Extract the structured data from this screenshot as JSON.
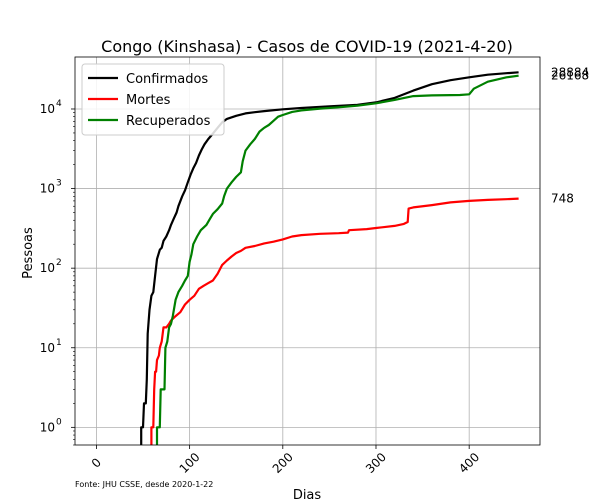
{
  "chart_data": {
    "type": "line",
    "title": "Congo (Kinshasa) - Casos de COVID-19 (2021-4-20)",
    "xlabel": "Dias",
    "ylabel": "Pessoas",
    "yscale": "log",
    "xlim": [
      -23,
      476
    ],
    "ylim": [
      0.6,
      45000
    ],
    "xticks": [
      0,
      100,
      200,
      300,
      400
    ],
    "xtick_labels": [
      "0",
      "100",
      "200",
      "300",
      "400"
    ],
    "yticks": [
      1,
      10,
      100,
      1000,
      10000
    ],
    "ytick_labels": [
      "10",
      "10",
      "10",
      "10",
      "10"
    ],
    "ytick_exponents": [
      "0",
      "1",
      "2",
      "3",
      "4"
    ],
    "grid": true,
    "legend_position": "upper-left",
    "footnote": "Fonte: JHU CSSE, desde 2020-1-22",
    "series": [
      {
        "name": "Confirmados",
        "color": "#000000",
        "end_label": "28884",
        "points": [
          [
            48,
            0.6
          ],
          [
            48,
            1
          ],
          [
            50,
            1
          ],
          [
            51,
            2
          ],
          [
            53,
            2
          ],
          [
            54,
            4
          ],
          [
            55,
            15
          ],
          [
            57,
            30
          ],
          [
            59,
            45
          ],
          [
            61,
            50
          ],
          [
            63,
            80
          ],
          [
            65,
            130
          ],
          [
            68,
            170
          ],
          [
            70,
            180
          ],
          [
            72,
            220
          ],
          [
            75,
            250
          ],
          [
            78,
            300
          ],
          [
            80,
            350
          ],
          [
            83,
            420
          ],
          [
            86,
            500
          ],
          [
            88,
            600
          ],
          [
            92,
            800
          ],
          [
            95,
            950
          ],
          [
            98,
            1200
          ],
          [
            101,
            1500
          ],
          [
            104,
            1800
          ],
          [
            107,
            2100
          ],
          [
            110,
            2600
          ],
          [
            113,
            3100
          ],
          [
            116,
            3600
          ],
          [
            120,
            4200
          ],
          [
            125,
            4900
          ],
          [
            130,
            5800
          ],
          [
            135,
            6800
          ],
          [
            140,
            7500
          ],
          [
            150,
            8200
          ],
          [
            160,
            8800
          ],
          [
            170,
            9100
          ],
          [
            180,
            9400
          ],
          [
            200,
            9900
          ],
          [
            220,
            10300
          ],
          [
            250,
            10800
          ],
          [
            280,
            11300
          ],
          [
            300,
            12100
          ],
          [
            320,
            13800
          ],
          [
            340,
            17000
          ],
          [
            360,
            20500
          ],
          [
            380,
            23000
          ],
          [
            400,
            25000
          ],
          [
            420,
            27000
          ],
          [
            440,
            28200
          ],
          [
            453,
            28884
          ]
        ]
      },
      {
        "name": "Mortes",
        "color": "#ff0000",
        "end_label": "748",
        "points": [
          [
            59,
            0.6
          ],
          [
            59,
            1
          ],
          [
            61,
            1
          ],
          [
            62,
            3
          ],
          [
            63,
            5
          ],
          [
            64,
            5
          ],
          [
            65,
            7
          ],
          [
            67,
            8
          ],
          [
            68,
            10
          ],
          [
            70,
            12
          ],
          [
            72,
            18
          ],
          [
            75,
            18
          ],
          [
            78,
            20
          ],
          [
            80,
            22
          ],
          [
            85,
            25
          ],
          [
            90,
            28
          ],
          [
            95,
            35
          ],
          [
            100,
            40
          ],
          [
            105,
            45
          ],
          [
            110,
            55
          ],
          [
            115,
            60
          ],
          [
            120,
            65
          ],
          [
            125,
            70
          ],
          [
            130,
            85
          ],
          [
            135,
            110
          ],
          [
            140,
            125
          ],
          [
            145,
            140
          ],
          [
            150,
            155
          ],
          [
            155,
            165
          ],
          [
            160,
            180
          ],
          [
            170,
            190
          ],
          [
            180,
            205
          ],
          [
            190,
            215
          ],
          [
            200,
            230
          ],
          [
            210,
            250
          ],
          [
            220,
            260
          ],
          [
            240,
            270
          ],
          [
            260,
            275
          ],
          [
            270,
            280
          ],
          [
            271,
            300
          ],
          [
            290,
            310
          ],
          [
            300,
            320
          ],
          [
            320,
            340
          ],
          [
            330,
            360
          ],
          [
            334,
            380
          ],
          [
            335,
            560
          ],
          [
            340,
            580
          ],
          [
            360,
            620
          ],
          [
            380,
            670
          ],
          [
            400,
            700
          ],
          [
            420,
            720
          ],
          [
            440,
            735
          ],
          [
            453,
            748
          ]
        ]
      },
      {
        "name": "Recuperados",
        "color": "#008000",
        "end_label": "26168",
        "points": [
          [
            65,
            0.6
          ],
          [
            65,
            1
          ],
          [
            67,
            1
          ],
          [
            68,
            1
          ],
          [
            69,
            3
          ],
          [
            72,
            3
          ],
          [
            73,
            3
          ],
          [
            74,
            10
          ],
          [
            76,
            12
          ],
          [
            78,
            18
          ],
          [
            80,
            20
          ],
          [
            82,
            25
          ],
          [
            85,
            40
          ],
          [
            88,
            50
          ],
          [
            92,
            60
          ],
          [
            95,
            70
          ],
          [
            98,
            80
          ],
          [
            100,
            120
          ],
          [
            102,
            150
          ],
          [
            104,
            200
          ],
          [
            108,
            250
          ],
          [
            112,
            300
          ],
          [
            118,
            350
          ],
          [
            122,
            420
          ],
          [
            125,
            480
          ],
          [
            130,
            550
          ],
          [
            135,
            650
          ],
          [
            137,
            800
          ],
          [
            140,
            1000
          ],
          [
            145,
            1200
          ],
          [
            150,
            1400
          ],
          [
            155,
            1600
          ],
          [
            157,
            2200
          ],
          [
            160,
            3000
          ],
          [
            165,
            3600
          ],
          [
            170,
            4200
          ],
          [
            175,
            5200
          ],
          [
            180,
            5800
          ],
          [
            185,
            6300
          ],
          [
            190,
            7100
          ],
          [
            195,
            8000
          ],
          [
            200,
            8400
          ],
          [
            210,
            9200
          ],
          [
            220,
            9600
          ],
          [
            240,
            10100
          ],
          [
            260,
            10500
          ],
          [
            280,
            11000
          ],
          [
            300,
            11800
          ],
          [
            320,
            13000
          ],
          [
            340,
            14500
          ],
          [
            360,
            14800
          ],
          [
            390,
            15000
          ],
          [
            400,
            15300
          ],
          [
            405,
            18000
          ],
          [
            420,
            22000
          ],
          [
            440,
            25000
          ],
          [
            453,
            26168
          ]
        ]
      }
    ]
  }
}
